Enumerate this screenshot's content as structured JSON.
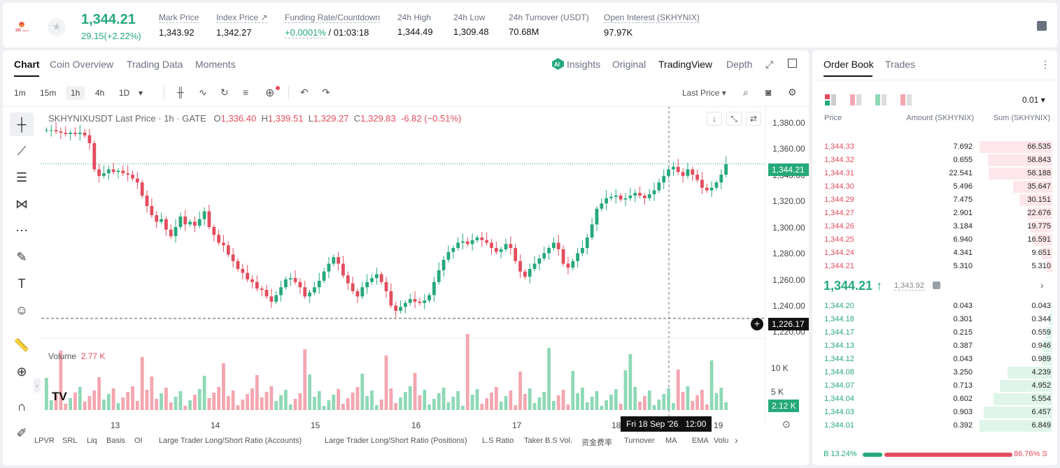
{
  "ticker": {
    "logo_text": "SK hynix",
    "last_price": "1,344.21",
    "change": "29.15(+2.22%)",
    "stats": [
      {
        "label": "Mark Price",
        "value": "1,343.92"
      },
      {
        "label": "Index Price ↗",
        "value": "1,342.27"
      },
      {
        "label": "Funding Rate/Countdown",
        "value_green": "+0.0001%",
        "value": " / 01:03:18"
      },
      {
        "label": "24h High",
        "value": "1,344.49"
      },
      {
        "label": "24h Low",
        "value": "1,309.48"
      },
      {
        "label": "24h Turnover (USDT)",
        "value": "70.68M"
      },
      {
        "label": "Open Interest (SKHYNIX)",
        "value": "97.97K"
      }
    ]
  },
  "chart_tabs": [
    "Chart",
    "Coin Overview",
    "Trading Data",
    "Moments"
  ],
  "view_tabs": {
    "insights": "Insights",
    "original": "Original",
    "tradingview": "TradingView",
    "depth": "Depth"
  },
  "timeframes": [
    "1m",
    "15m",
    "1h",
    "4h",
    "1D"
  ],
  "last_price_select": "Last Price",
  "legend": {
    "symbol": "SKHYNIXUSDT Last Price · 1h · GATE",
    "o_label": "O",
    "o": "1,336.40",
    "h_label": "H",
    "h": "1,339.51",
    "l_label": "L",
    "l": "1,329.27",
    "c_label": "C",
    "c": "1,329.83",
    "chg": "-6.82 (−0.51%)"
  },
  "price_axis": [
    "1,380.00",
    "1,360.00",
    "1,340.00",
    "1,320.00",
    "1,300.00",
    "1,280.00",
    "1,260.00",
    "1,240.00",
    "1,220.00"
  ],
  "current_price_tag": "1,344.21",
  "crosshair_price_tag": "1,226.17",
  "volume": {
    "label": "Volume",
    "value": "2.77 K",
    "axis": [
      "10 K",
      "5 K"
    ],
    "tag": "2.12 K"
  },
  "time_axis": [
    "13",
    "14",
    "15",
    "16",
    "17",
    "18",
    "19"
  ],
  "crosshair_time": "Fri 18 Sep '26   12:00",
  "indicators": [
    "LPVR",
    "SRL",
    "Liq",
    "Basis",
    "OI",
    "Large Trader Long/Short Ratio (Accounts)",
    "Large Trader Long/Short Ratio (Positions)",
    "L.S Ratio",
    "Taker B.S Vol.",
    "资金费率",
    "Turnover",
    "MA",
    "EMA",
    "Volu"
  ],
  "orderbook": {
    "tabs": [
      "Order Book",
      "Trades"
    ],
    "precision": "0.01",
    "headers": {
      "price": "Price",
      "amount": "Amount (SKHYNIX)",
      "sum": "Sum (SKHYNIX)"
    },
    "asks": [
      {
        "price": "1,344.33",
        "amount": "7.692",
        "sum": "66.535",
        "depth": 1.0
      },
      {
        "price": "1,344.32",
        "amount": "0.655",
        "sum": "58.843",
        "depth": 0.884
      },
      {
        "price": "1,344.31",
        "amount": "22.541",
        "sum": "58.188",
        "depth": 0.874
      },
      {
        "price": "1,344.30",
        "amount": "5.496",
        "sum": "35.647",
        "depth": 0.536
      },
      {
        "price": "1,344.29",
        "amount": "7.475",
        "sum": "30.151",
        "depth": 0.453
      },
      {
        "price": "1,344.27",
        "amount": "2.901",
        "sum": "22.676",
        "depth": 0.341
      },
      {
        "price": "1,344.26",
        "amount": "3.184",
        "sum": "19.775",
        "depth": 0.297
      },
      {
        "price": "1,344.25",
        "amount": "6.940",
        "sum": "16.591",
        "depth": 0.249
      },
      {
        "price": "1,344.24",
        "amount": "4.341",
        "sum": "9.651",
        "depth": 0.145
      },
      {
        "price": "1,344.21",
        "amount": "5.310",
        "sum": "5.310",
        "depth": 0.08
      }
    ],
    "mid_price": "1,344.21 ↑",
    "mark": "1,343.92",
    "bids": [
      {
        "price": "1,344.20",
        "amount": "0.043",
        "sum": "0.043",
        "depth": 0.006
      },
      {
        "price": "1,344.18",
        "amount": "0.301",
        "sum": "0.344",
        "depth": 0.05
      },
      {
        "price": "1,344.17",
        "amount": "0.215",
        "sum": "0.559",
        "depth": 0.082
      },
      {
        "price": "1,344.13",
        "amount": "0.387",
        "sum": "0.946",
        "depth": 0.138
      },
      {
        "price": "1,344.12",
        "amount": "0.043",
        "sum": "0.989",
        "depth": 0.144
      },
      {
        "price": "1,344.08",
        "amount": "3.250",
        "sum": "4.239",
        "depth": 0.619
      },
      {
        "price": "1,344.07",
        "amount": "0.713",
        "sum": "4.952",
        "depth": 0.723
      },
      {
        "price": "1,344.04",
        "amount": "0.602",
        "sum": "5.554",
        "depth": 0.811
      },
      {
        "price": "1,344.03",
        "amount": "0.903",
        "sum": "6.457",
        "depth": 0.943
      },
      {
        "price": "1,344.01",
        "amount": "0.392",
        "sum": "6.849",
        "depth": 1.0
      }
    ],
    "buy_ratio": "B 13.24%",
    "sell_ratio": "86.76% S",
    "buy_fraction": 0.1324
  },
  "colors": {
    "up": "#26a97a",
    "down": "#e34d5e",
    "up_light": "#8fd9b6",
    "down_light": "#f4a6b0"
  }
}
